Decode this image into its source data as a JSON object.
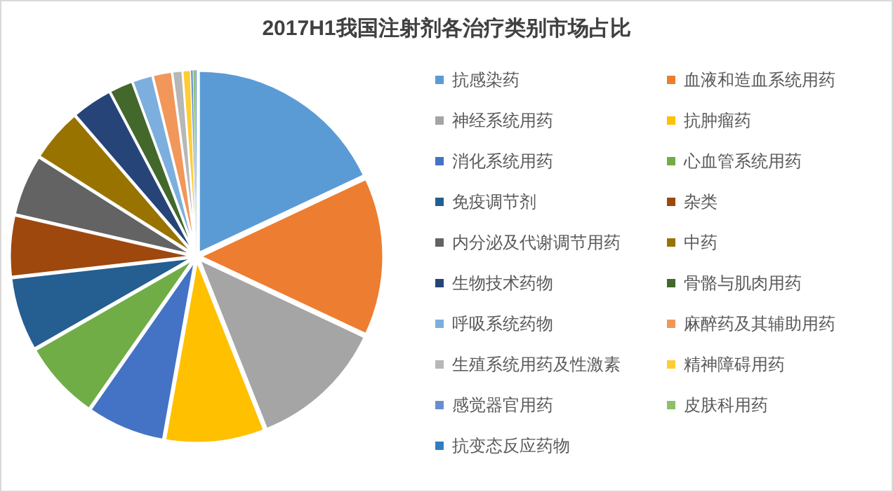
{
  "chart_data": {
    "type": "pie",
    "title": "2017H1我国注射剂各治疗类别市场占比",
    "categories": [
      "抗感染药",
      "血液和造血系统用药",
      "神经系统用药",
      "抗肿瘤药",
      "消化系统用药",
      "心血管系统用药",
      "免疫调节剂",
      "杂类",
      "内分泌及代谢调节用药",
      "中药",
      "生物技术药物",
      "骨骼与肌肉用药",
      "呼吸系统药物",
      "麻醉药及其辅助用药",
      "生殖系统用药及性激素",
      "精神障碍用药",
      "感觉器官用药",
      "皮肤科用药",
      "抗变态反应药物"
    ],
    "values": [
      18,
      14,
      12,
      8.8,
      6.9,
      7,
      6.5,
      5.4,
      5.4,
      4.7,
      3.6,
      2.1,
      1.8,
      1.7,
      0.9,
      0.7,
      0.2,
      0.2,
      0.1
    ],
    "colors": [
      "#5b9bd5",
      "#ed7d31",
      "#a5a5a5",
      "#ffc000",
      "#4472c4",
      "#70ad47",
      "#255e91",
      "#9e480e",
      "#636363",
      "#997300",
      "#264478",
      "#43682b",
      "#7cafdd",
      "#f1975a",
      "#b7b7b7",
      "#ffcd33",
      "#698ed0",
      "#8cc168",
      "#327dc2"
    ],
    "legend": "right"
  }
}
